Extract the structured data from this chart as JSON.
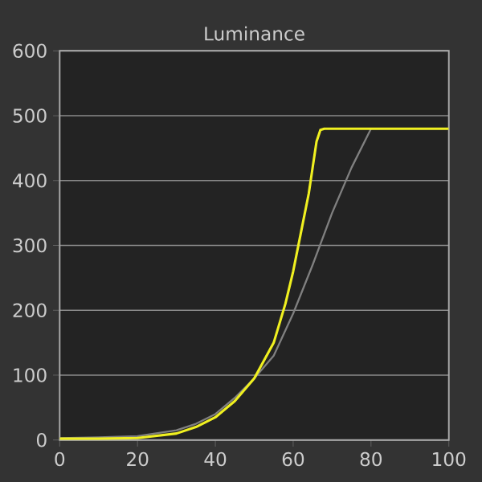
{
  "chart_data": {
    "type": "line",
    "title": "Luminance",
    "xlim": [
      0,
      100
    ],
    "ylim": [
      0,
      600
    ],
    "xticks": [
      0,
      20,
      40,
      60,
      80,
      100
    ],
    "yticks": [
      0,
      100,
      200,
      300,
      400,
      500,
      600
    ],
    "grid": "y",
    "series": [
      {
        "color": "#808080",
        "x": [
          0,
          10,
          20,
          30,
          35,
          40,
          45,
          50,
          55,
          60,
          65,
          70,
          75,
          80,
          100
        ],
        "values": [
          3,
          4,
          6,
          15,
          25,
          40,
          65,
          95,
          130,
          195,
          270,
          350,
          420,
          480,
          480
        ]
      },
      {
        "color": "#f0f020",
        "x": [
          0,
          10,
          20,
          30,
          35,
          40,
          45,
          50,
          55,
          58,
          60,
          62,
          64,
          65,
          66,
          67,
          68,
          80,
          100
        ],
        "values": [
          2,
          2,
          3,
          10,
          20,
          35,
          60,
          95,
          150,
          210,
          260,
          320,
          380,
          420,
          460,
          478,
          480,
          480,
          480
        ]
      }
    ]
  }
}
